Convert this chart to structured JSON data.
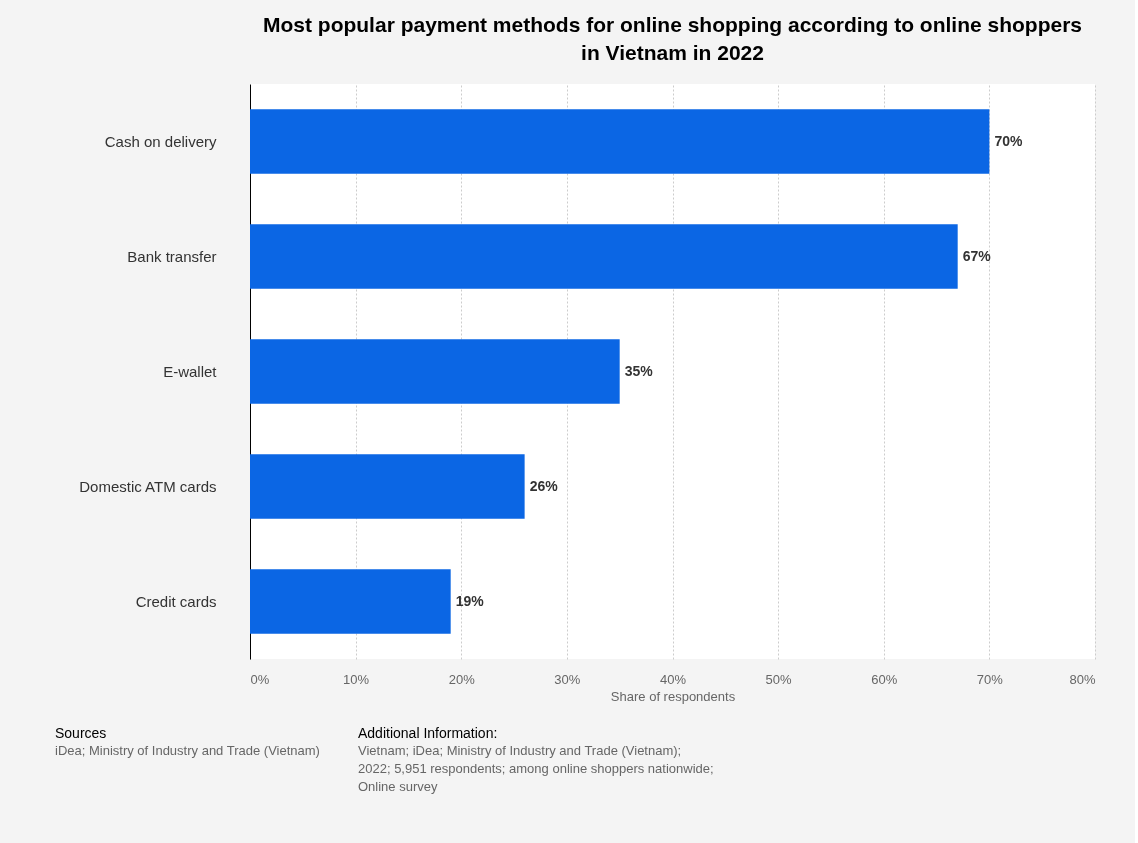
{
  "chart_data": {
    "type": "bar",
    "orientation": "horizontal",
    "title": "Most popular payment methods for online shopping according to online shoppers in Vietnam in 2022",
    "categories": [
      "Cash on delivery",
      "Bank transfer",
      "E-wallet",
      "Domestic ATM cards",
      "Credit cards"
    ],
    "values": [
      70,
      67,
      35,
      26,
      19
    ],
    "color": "#0b66e4",
    "value_labels": [
      "70%",
      "67%",
      "35%",
      "26%",
      "19%"
    ],
    "xlabel": "Share of respondents",
    "xlim": [
      0,
      80
    ],
    "xticks": [
      {
        "value": 0,
        "label": "0%"
      },
      {
        "value": 10,
        "label": "10%"
      },
      {
        "value": 20,
        "label": "20%"
      },
      {
        "value": 30,
        "label": "30%"
      },
      {
        "value": 40,
        "label": "40%"
      },
      {
        "value": 50,
        "label": "50%"
      },
      {
        "value": 60,
        "label": "60%"
      },
      {
        "value": 70,
        "label": "70%"
      },
      {
        "value": 80,
        "label": "80%"
      }
    ],
    "grid": "x",
    "annotations": [
      "Sources",
      "iDea; Ministry of Industry and Trade (Vietnam)",
      "Additional Information:",
      "Vietnam; iDea; Ministry of Industry and Trade (Vietnam); 2022; 5,951 respondents; among online shoppers nationwide; Online survey"
    ]
  }
}
